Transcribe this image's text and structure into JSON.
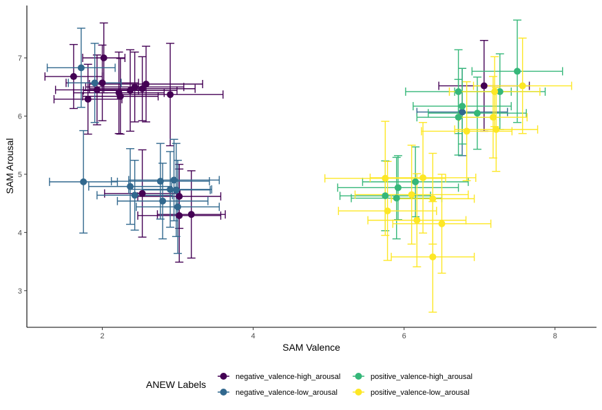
{
  "chart_data": {
    "type": "scatter",
    "title": "",
    "xlabel": "SAM Valence",
    "ylabel": "SAM Arousal",
    "xlim": [
      1.0,
      8.55
    ],
    "ylim": [
      2.37,
      7.9
    ],
    "x_ticks": [
      2,
      4,
      6,
      8
    ],
    "y_ticks": [
      3,
      4,
      5,
      6,
      7
    ],
    "grid": false,
    "error_bars": true,
    "legend": {
      "title": "ANEW Labels",
      "placement": "bottom",
      "entries": [
        {
          "name": "negative_valence-high_arousal",
          "color": "#440154"
        },
        {
          "name": "negative_valence-low_arousal",
          "color": "#31688E"
        },
        {
          "name": "positive_valence-high_arousal",
          "color": "#35B779"
        },
        {
          "name": "positive_valence-low_arousal",
          "color": "#FDE725"
        }
      ]
    },
    "series": [
      {
        "name": "negative_valence-high_arousal",
        "color": "#440154",
        "points": [
          {
            "x": 1.62,
            "y": 6.68,
            "xerr": 0.38,
            "yerr": 0.55
          },
          {
            "x": 2.02,
            "y": 7.0,
            "xerr": 0.28,
            "yerr": 0.6
          },
          {
            "x": 2.0,
            "y": 6.57,
            "xerr": 0.48,
            "yerr": 0.65
          },
          {
            "x": 1.93,
            "y": 6.45,
            "xerr": 0.55,
            "yerr": 0.6
          },
          {
            "x": 1.81,
            "y": 6.29,
            "xerr": 0.45,
            "yerr": 0.6
          },
          {
            "x": 2.22,
            "y": 6.4,
            "xerr": 0.6,
            "yerr": 0.7
          },
          {
            "x": 2.24,
            "y": 6.34,
            "xerr": 0.5,
            "yerr": 0.65
          },
          {
            "x": 2.37,
            "y": 6.44,
            "xerr": 0.62,
            "yerr": 0.7
          },
          {
            "x": 2.43,
            "y": 6.5,
            "xerr": 0.65,
            "yerr": 0.6
          },
          {
            "x": 2.53,
            "y": 6.47,
            "xerr": 0.7,
            "yerr": 0.55
          },
          {
            "x": 2.58,
            "y": 6.55,
            "xerr": 0.75,
            "yerr": 0.65
          },
          {
            "x": 2.9,
            "y": 6.37,
            "xerr": 0.7,
            "yerr": 0.88
          },
          {
            "x": 2.53,
            "y": 4.67,
            "xerr": 0.5,
            "yerr": 0.75
          },
          {
            "x": 3.02,
            "y": 4.62,
            "xerr": 0.55,
            "yerr": 0.55
          },
          {
            "x": 3.02,
            "y": 4.29,
            "xerr": 0.55,
            "yerr": 0.8
          },
          {
            "x": 3.18,
            "y": 4.31,
            "xerr": 0.45,
            "yerr": 0.75
          },
          {
            "x": 7.06,
            "y": 6.52,
            "xerr": 0.6,
            "yerr": 0.78
          }
        ]
      },
      {
        "name": "negative_valence-low_arousal",
        "color": "#31688E",
        "points": [
          {
            "x": 1.72,
            "y": 6.83,
            "xerr": 0.45,
            "yerr": 0.68
          },
          {
            "x": 1.9,
            "y": 6.57,
            "xerr": 0.35,
            "yerr": 0.68
          },
          {
            "x": 1.75,
            "y": 4.87,
            "xerr": 0.45,
            "yerr": 0.88
          },
          {
            "x": 2.37,
            "y": 4.79,
            "xerr": 0.55,
            "yerr": 0.65
          },
          {
            "x": 2.43,
            "y": 4.64,
            "xerr": 0.5,
            "yerr": 0.6
          },
          {
            "x": 2.77,
            "y": 4.88,
            "xerr": 0.65,
            "yerr": 0.65
          },
          {
            "x": 2.8,
            "y": 4.54,
            "xerr": 0.6,
            "yerr": 0.65
          },
          {
            "x": 2.9,
            "y": 4.74,
            "xerr": 0.55,
            "yerr": 0.65
          },
          {
            "x": 2.95,
            "y": 4.9,
            "xerr": 0.6,
            "yerr": 0.7
          },
          {
            "x": 2.98,
            "y": 4.73,
            "xerr": 0.45,
            "yerr": 0.8
          },
          {
            "x": 3.0,
            "y": 4.44,
            "xerr": 0.55,
            "yerr": 0.8
          },
          {
            "x": 6.77,
            "y": 6.07,
            "xerr": 0.6,
            "yerr": 0.75
          }
        ]
      },
      {
        "name": "positive_valence-high_arousal",
        "color": "#35B779",
        "points": [
          {
            "x": 7.5,
            "y": 6.77,
            "xerr": 0.6,
            "yerr": 0.88
          },
          {
            "x": 6.72,
            "y": 6.42,
            "xerr": 0.7,
            "yerr": 0.72
          },
          {
            "x": 7.27,
            "y": 6.42,
            "xerr": 0.6,
            "yerr": 0.65
          },
          {
            "x": 6.77,
            "y": 6.17,
            "xerr": 0.65,
            "yerr": 0.65
          },
          {
            "x": 6.97,
            "y": 6.05,
            "xerr": 0.65,
            "yerr": 0.62
          },
          {
            "x": 6.72,
            "y": 5.98,
            "xerr": 0.55,
            "yerr": 0.65
          },
          {
            "x": 5.92,
            "y": 4.77,
            "xerr": 0.8,
            "yerr": 0.55
          },
          {
            "x": 6.15,
            "y": 4.87,
            "xerr": 0.7,
            "yerr": 0.6
          },
          {
            "x": 5.75,
            "y": 4.63,
            "xerr": 0.6,
            "yerr": 0.6
          },
          {
            "x": 5.9,
            "y": 4.59,
            "xerr": 0.6,
            "yerr": 0.7
          }
        ]
      },
      {
        "name": "positive_valence-low_arousal",
        "color": "#FDE725",
        "points": [
          {
            "x": 7.57,
            "y": 6.52,
            "xerr": 0.65,
            "yerr": 0.82
          },
          {
            "x": 7.2,
            "y": 6.42,
            "xerr": 0.6,
            "yerr": 0.6
          },
          {
            "x": 7.18,
            "y": 5.98,
            "xerr": 0.45,
            "yerr": 0.7
          },
          {
            "x": 7.22,
            "y": 5.77,
            "xerr": 0.55,
            "yerr": 0.72
          },
          {
            "x": 6.83,
            "y": 5.74,
            "xerr": 0.6,
            "yerr": 0.85
          },
          {
            "x": 5.75,
            "y": 4.93,
            "xerr": 0.8,
            "yerr": 0.98
          },
          {
            "x": 6.25,
            "y": 4.94,
            "xerr": 0.7,
            "yerr": 0.95
          },
          {
            "x": 6.1,
            "y": 4.65,
            "xerr": 0.75,
            "yerr": 0.85
          },
          {
            "x": 6.38,
            "y": 4.58,
            "xerr": 0.55,
            "yerr": 0.78
          },
          {
            "x": 5.78,
            "y": 4.37,
            "xerr": 0.65,
            "yerr": 0.85
          },
          {
            "x": 6.17,
            "y": 4.21,
            "xerr": 0.65,
            "yerr": 0.8
          },
          {
            "x": 6.5,
            "y": 4.15,
            "xerr": 0.65,
            "yerr": 0.85
          },
          {
            "x": 6.38,
            "y": 3.58,
            "xerr": 0.55,
            "yerr": 0.95
          }
        ]
      }
    ]
  }
}
